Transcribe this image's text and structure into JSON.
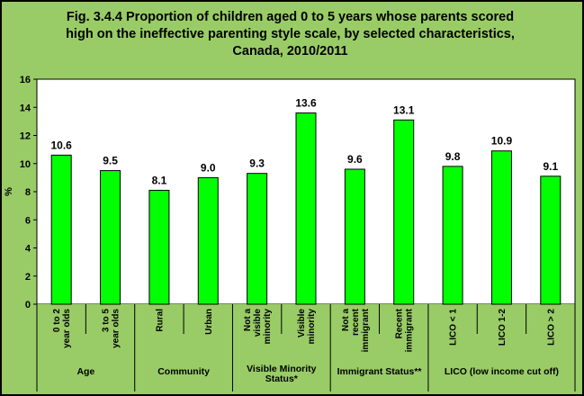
{
  "title_lines": [
    "Fig. 3.4.4 Proportion of children aged 0 to 5 years whose parents scored",
    "high on the ineffective parenting style scale, by selected characteristics,",
    "Canada, 2010/2011"
  ],
  "colors": {
    "background": "#99cc66",
    "plot_area": "#ffffff",
    "bar_fill": "#00ff00",
    "bar_stroke": "#000000"
  },
  "chart_data": {
    "type": "bar",
    "title": "Fig. 3.4.4 Proportion of children aged 0 to 5 years whose parents scored high on the ineffective parenting style scale, by selected characteristics, Canada, 2010/2011",
    "ylabel": "%",
    "xlabel": "",
    "ylim": [
      0,
      16
    ],
    "yticks": [
      0,
      2,
      4,
      6,
      8,
      10,
      12,
      14,
      16
    ],
    "grid": false,
    "legend": "none",
    "categories": [
      [
        "0 to 2",
        "year olds"
      ],
      [
        "3 to 5",
        "year olds"
      ],
      [
        "Rural"
      ],
      [
        "Urban"
      ],
      [
        "Not a",
        "visible",
        "minority"
      ],
      [
        "Visible",
        "minority"
      ],
      [
        "Not a",
        "recent",
        "immigrant"
      ],
      [
        "Recent",
        "immigrant"
      ],
      [
        "LICO < 1"
      ],
      [
        "LICO 1-2"
      ],
      [
        "LICO > 2"
      ]
    ],
    "values": [
      10.6,
      9.5,
      8.1,
      9.0,
      9.3,
      13.6,
      9.6,
      13.1,
      9.8,
      10.9,
      9.1
    ],
    "value_labels": [
      "10.6",
      "9.5",
      "8.1",
      "9.0",
      "9.3",
      "13.6",
      "9.6",
      "13.1",
      "9.8",
      "10.9",
      "9.1"
    ],
    "groups": [
      {
        "label": [
          "Age"
        ],
        "start": 0,
        "end": 1
      },
      {
        "label": [
          "Community"
        ],
        "start": 2,
        "end": 3
      },
      {
        "label": [
          "Visible Minority",
          "Status*"
        ],
        "start": 4,
        "end": 5
      },
      {
        "label": [
          "Immigrant Status**"
        ],
        "start": 6,
        "end": 7
      },
      {
        "label": [
          "LICO (low income cut off)"
        ],
        "start": 8,
        "end": 10
      }
    ]
  }
}
